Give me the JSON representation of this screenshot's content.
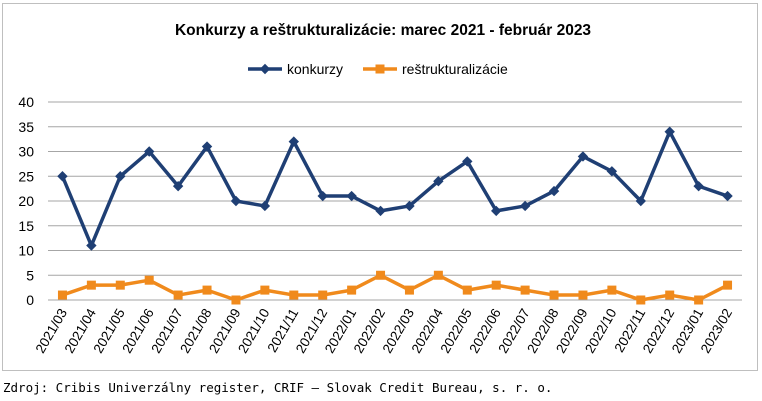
{
  "chart_data": {
    "type": "line",
    "title": "Konkurzy a reštrukturalizácie: marec 2021 - február 2023",
    "categories": [
      "2021/03",
      "2021/04",
      "2021/05",
      "2021/06",
      "2021/07",
      "2021/08",
      "2021/09",
      "2021/10",
      "2021/11",
      "2021/12",
      "2022/01",
      "2022/02",
      "2022/03",
      "2022/04",
      "2022/05",
      "2022/06",
      "2022/07",
      "2022/08",
      "2022/09",
      "2022/10",
      "2022/11",
      "2022/12",
      "2023/01",
      "2023/02"
    ],
    "series": [
      {
        "name": "konkurzy",
        "color": "#1f3f74",
        "marker": "diamond",
        "values": [
          25,
          11,
          25,
          30,
          23,
          31,
          20,
          19,
          32,
          21,
          21,
          18,
          19,
          24,
          28,
          18,
          19,
          22,
          29,
          26,
          20,
          34,
          23,
          21
        ]
      },
      {
        "name": "reštrukturalizácie",
        "color": "#f08a1c",
        "marker": "square",
        "values": [
          1,
          3,
          3,
          4,
          1,
          2,
          0,
          2,
          1,
          1,
          2,
          5,
          2,
          5,
          2,
          3,
          2,
          1,
          1,
          2,
          0,
          1,
          0,
          3
        ]
      }
    ],
    "ylim": [
      0,
      40
    ],
    "yticks": [
      0,
      5,
      10,
      15,
      20,
      25,
      30,
      35,
      40
    ],
    "grid": true,
    "legend": "top-center"
  },
  "source": "Zdroj: Cribis Univerzálny register, CRIF – Slovak Credit Bureau, s. r. o."
}
